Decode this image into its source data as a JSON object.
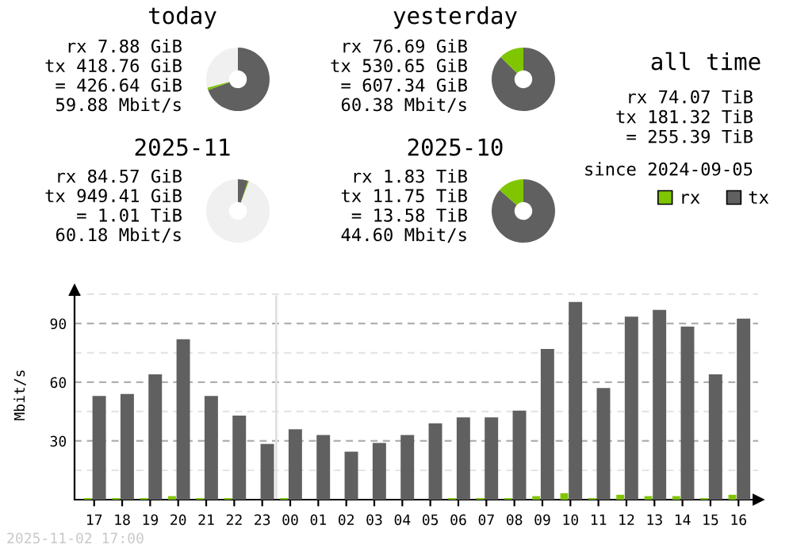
{
  "chart_data": [
    {
      "type": "donut",
      "title": "today",
      "categories": [
        null,
        null,
        null
      ],
      "values": [
        69.5,
        1.3,
        29.2
      ],
      "colors": [
        "#606060",
        "#7fc600",
        "#f0f0f0"
      ],
      "annotations": [
        "rx 7.88 GiB",
        "tx 418.76 GiB",
        "= 426.64 GiB",
        "59.88 Mbit/s"
      ]
    },
    {
      "type": "donut",
      "title": "yesterday",
      "categories": [
        null,
        null
      ],
      "values": [
        87.4,
        12.6
      ],
      "colors": [
        "#606060",
        "#7fc600"
      ],
      "annotations": [
        "rx 76.69 GiB",
        "tx 530.65 GiB",
        "= 607.34 GiB",
        "60.38 Mbit/s"
      ]
    },
    {
      "type": "other",
      "title": "all time",
      "annotations": [
        "rx 74.07 TiB",
        "tx 181.32 TiB",
        "= 255.39 TiB",
        "since 2024-09-05"
      ]
    },
    {
      "type": "donut",
      "title": "2025-11",
      "categories": [
        null,
        null,
        null
      ],
      "values": [
        5.2,
        0.5,
        94.3
      ],
      "colors": [
        "#606060",
        "#7fc600",
        "#f0f0f0"
      ],
      "annotations": [
        "rx 84.57 GiB",
        "tx 949.41 GiB",
        "= 1.01 TiB",
        "60.18 Mbit/s"
      ]
    },
    {
      "type": "donut",
      "title": "2025-10",
      "categories": [
        null,
        null
      ],
      "values": [
        86.5,
        13.5
      ],
      "colors": [
        "#606060",
        "#7fc600"
      ],
      "annotations": [
        "rx 1.83 TiB",
        "tx 11.75 TiB",
        "= 13.58 TiB",
        "44.60 Mbit/s"
      ]
    },
    {
      "type": "bar",
      "ylabel": "Mbit/s",
      "categories": [
        "17",
        "18",
        "19",
        "20",
        "21",
        "22",
        "23",
        "00",
        "01",
        "02",
        "03",
        "04",
        "05",
        "06",
        "07",
        "08",
        "09",
        "10",
        "11",
        "12",
        "13",
        "14",
        "15",
        "16"
      ],
      "series": [
        {
          "name": "rx",
          "color": "#7fc600",
          "values": [
            0.8,
            0.8,
            0.8,
            1.8,
            0.8,
            0.8,
            0,
            0.8,
            0,
            0,
            0,
            0,
            0,
            0.8,
            0.8,
            0.8,
            1.8,
            3.3,
            0.8,
            2.5,
            1.8,
            1.8,
            0.8,
            2.5
          ]
        },
        {
          "name": "tx",
          "color": "#606060",
          "values": [
            53,
            54,
            64,
            82,
            53,
            43,
            28.5,
            36,
            33,
            24.5,
            29,
            33,
            39,
            42,
            42,
            45.5,
            77,
            101,
            57,
            93.5,
            97,
            88.5,
            64,
            92.5
          ]
        }
      ],
      "ylim": [
        0,
        107
      ],
      "yticks": [
        {
          "value": 15,
          "label": null
        },
        30,
        {
          "value": 45,
          "label": null
        },
        60,
        {
          "value": 75,
          "label": null
        },
        90,
        {
          "value": 105,
          "label": null
        }
      ],
      "grid": "y",
      "legend": "top right",
      "ref_lines": [
        {
          "axis": "x",
          "value": "00",
          "color": "#e0e0e0"
        }
      ],
      "annotations": [
        "2025-11-02 17:00"
      ]
    }
  ]
}
